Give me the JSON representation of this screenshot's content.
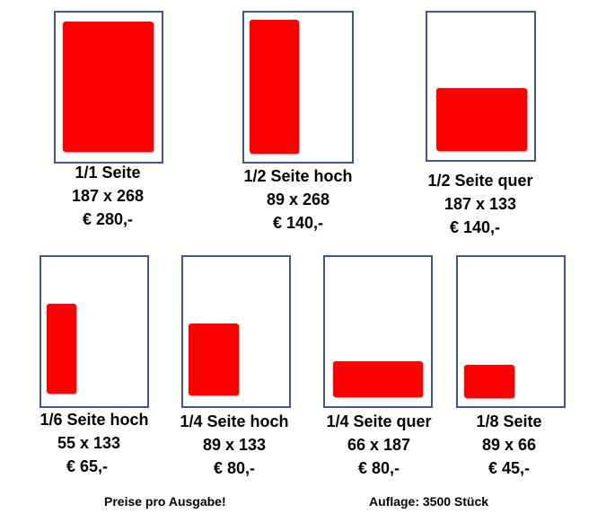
{
  "accent_color": "#ff0000",
  "frame_color": "#3f5a86",
  "formats": [
    {
      "label": "1/1 Seite",
      "size": "187 x 268",
      "price": "€ 280,-"
    },
    {
      "label": "1/2 Seite hoch",
      "size": "89 x 268",
      "price": "€ 140,-"
    },
    {
      "label": "1/2 Seite quer",
      "size": "187 x 133",
      "price": "€ 140,-"
    },
    {
      "label": "1/6 Seite hoch",
      "size": "55 x 133",
      "price": "€ 65,-"
    },
    {
      "label": "1/4 Seite hoch",
      "size": "89 x 133",
      "price": "€ 80,-"
    },
    {
      "label": "1/4 Seite quer",
      "size": "66 x 187",
      "price": "€ 80,-"
    },
    {
      "label": "1/8 Seite",
      "size": "89 x 66",
      "price": "€ 45,-"
    }
  ],
  "footer": {
    "note": "Preise pro Ausgabe!",
    "circulation": "Auflage: 3500 Stück"
  }
}
